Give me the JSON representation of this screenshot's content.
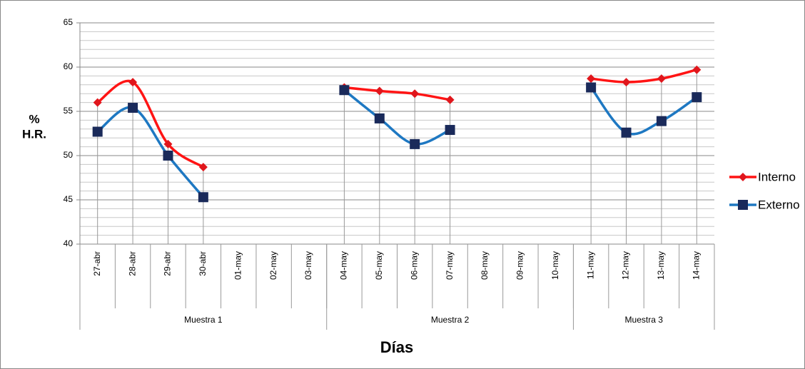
{
  "chart_data": {
    "type": "line",
    "ylabel": [
      "%",
      "H.R."
    ],
    "xlabel": "Días",
    "groups": [
      {
        "name": "Muestra 1",
        "categories": [
          "27-abr",
          "28-abr",
          "29-abr",
          "30-abr",
          "01-may",
          "02-may",
          "03-may"
        ]
      },
      {
        "name": "Muestra 2",
        "categories": [
          "04-may",
          "05-may",
          "06-may",
          "07-may",
          "08-may",
          "09-may",
          "10-may"
        ]
      },
      {
        "name": "Muestra 3",
        "categories": [
          "11-may",
          "12-may",
          "13-may",
          "14-may"
        ]
      }
    ],
    "series": [
      {
        "name": "Interno",
        "color": "#ff1414",
        "marker": "diamond",
        "marker_color": "#e0161c",
        "values": [
          56.0,
          58.3,
          51.3,
          48.7,
          null,
          null,
          null,
          57.7,
          57.3,
          57.0,
          56.3,
          null,
          null,
          null,
          58.7,
          58.3,
          58.7,
          59.7
        ]
      },
      {
        "name": "Externo",
        "color": "#1e78c2",
        "marker": "square",
        "marker_color": "#1a2a5a",
        "values": [
          52.7,
          55.4,
          50.0,
          45.3,
          null,
          null,
          null,
          57.4,
          54.2,
          51.3,
          52.9,
          null,
          null,
          null,
          57.7,
          52.6,
          53.9,
          56.6
        ]
      }
    ],
    "ylim": [
      40,
      65
    ],
    "yticks": [
      40,
      45,
      50,
      55,
      60,
      65
    ],
    "minor_step": 1,
    "grid": true,
    "smooth": true,
    "drop_lines": true,
    "legend": "right"
  }
}
